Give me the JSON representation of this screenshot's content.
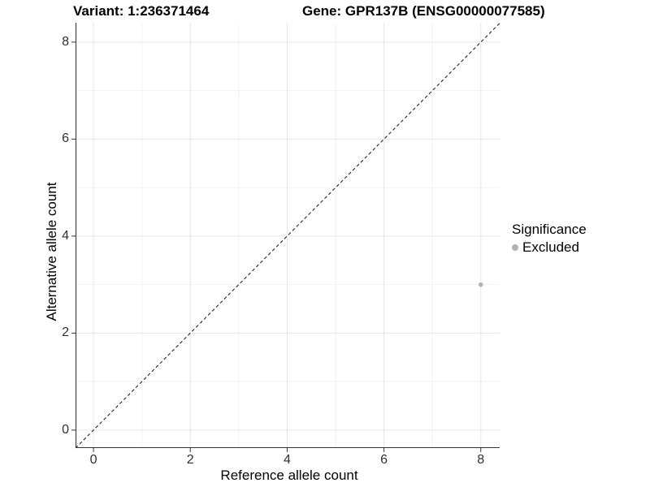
{
  "titles": {
    "variant": "Variant: 1:236371464",
    "gene": "Gene: GPR137B (ENSG00000077585)"
  },
  "axes": {
    "x_label": "Reference allele count",
    "y_label": "Alternative allele count"
  },
  "legend": {
    "title": "Significance",
    "items": [
      {
        "label": "Excluded",
        "color": "#b3b3b3"
      }
    ]
  },
  "colors": {
    "background": "#ffffff",
    "grid_major": "#e6e6e6",
    "grid_minor": "#f2f2f2",
    "axis_line": "#333333",
    "tick_label": "#303030",
    "reference_line": "#111111",
    "point": "#b3b3b3"
  },
  "chart_data": {
    "type": "scatter",
    "title": "Variant: 1:236371464  Gene: GPR137B (ENSG00000077585)",
    "xlabel": "Reference allele count",
    "ylabel": "Alternative allele count",
    "xlim": [
      -0.37,
      8.39
    ],
    "ylim": [
      -0.37,
      8.4
    ],
    "x_ticks": [
      0,
      2,
      4,
      6,
      8
    ],
    "y_ticks": [
      0,
      2,
      4,
      6,
      8
    ],
    "x_minor_ticks": [
      1,
      3,
      5,
      7
    ],
    "y_minor_ticks": [
      1,
      3,
      5,
      7
    ],
    "grid": true,
    "legend_position": "right",
    "reference_line": {
      "kind": "identity",
      "style": "dashed",
      "slope": 1,
      "intercept": 0
    },
    "series": [
      {
        "name": "Excluded",
        "color": "#b3b3b3",
        "point_radius": 2.8,
        "points": [
          {
            "x": 8,
            "y": 3
          }
        ]
      }
    ]
  }
}
